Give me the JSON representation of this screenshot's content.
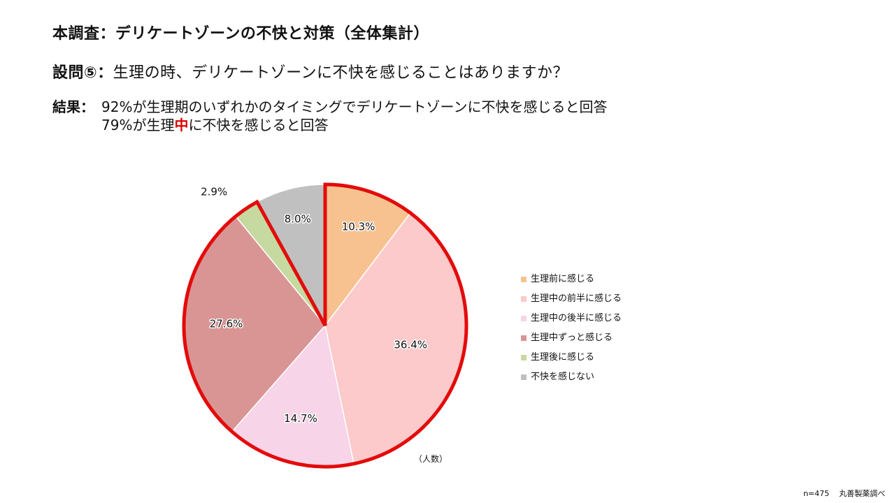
{
  "header": {
    "title": "本調査：デリケートゾーンの不快と対策（全体集計）",
    "question_label": "設問⑤：",
    "question_text": "生理の時、デリケートゾーンに不快を感じることはありますか？",
    "result_label": "結果：",
    "result_line1": "92%が生理期のいずれかのタイミングでデリケートゾーンに不快を感じると回答",
    "result_line2_pre": "79%が生理",
    "result_line2_accent": "中",
    "result_line2_post": "に不快を感じると回答"
  },
  "chart_data": {
    "type": "pie",
    "categories": [
      "生理前に感じる",
      "生理中の前半に感じる",
      "生理中の後半に感じる",
      "生理中ずっと感じる",
      "生理後に感じる",
      "不快を感じない"
    ],
    "values": [
      10.3,
      36.4,
      14.7,
      27.6,
      2.9,
      8.0
    ],
    "labels": [
      "10.3%",
      "36.4%",
      "14.7%",
      "27.6%",
      "2.9%",
      "8.0%"
    ],
    "colors": [
      "#f8c290",
      "#fccaca",
      "#f8d4e8",
      "#d99594",
      "#c6d9a0",
      "#c0c0c0"
    ],
    "highlight_color": "#e30b0b",
    "highlighted_range": [
      0,
      4
    ],
    "legend_position": "right",
    "unit_note": "（人数）"
  },
  "footer": {
    "sample_size": "n=475",
    "source": "丸善製薬調べ"
  }
}
